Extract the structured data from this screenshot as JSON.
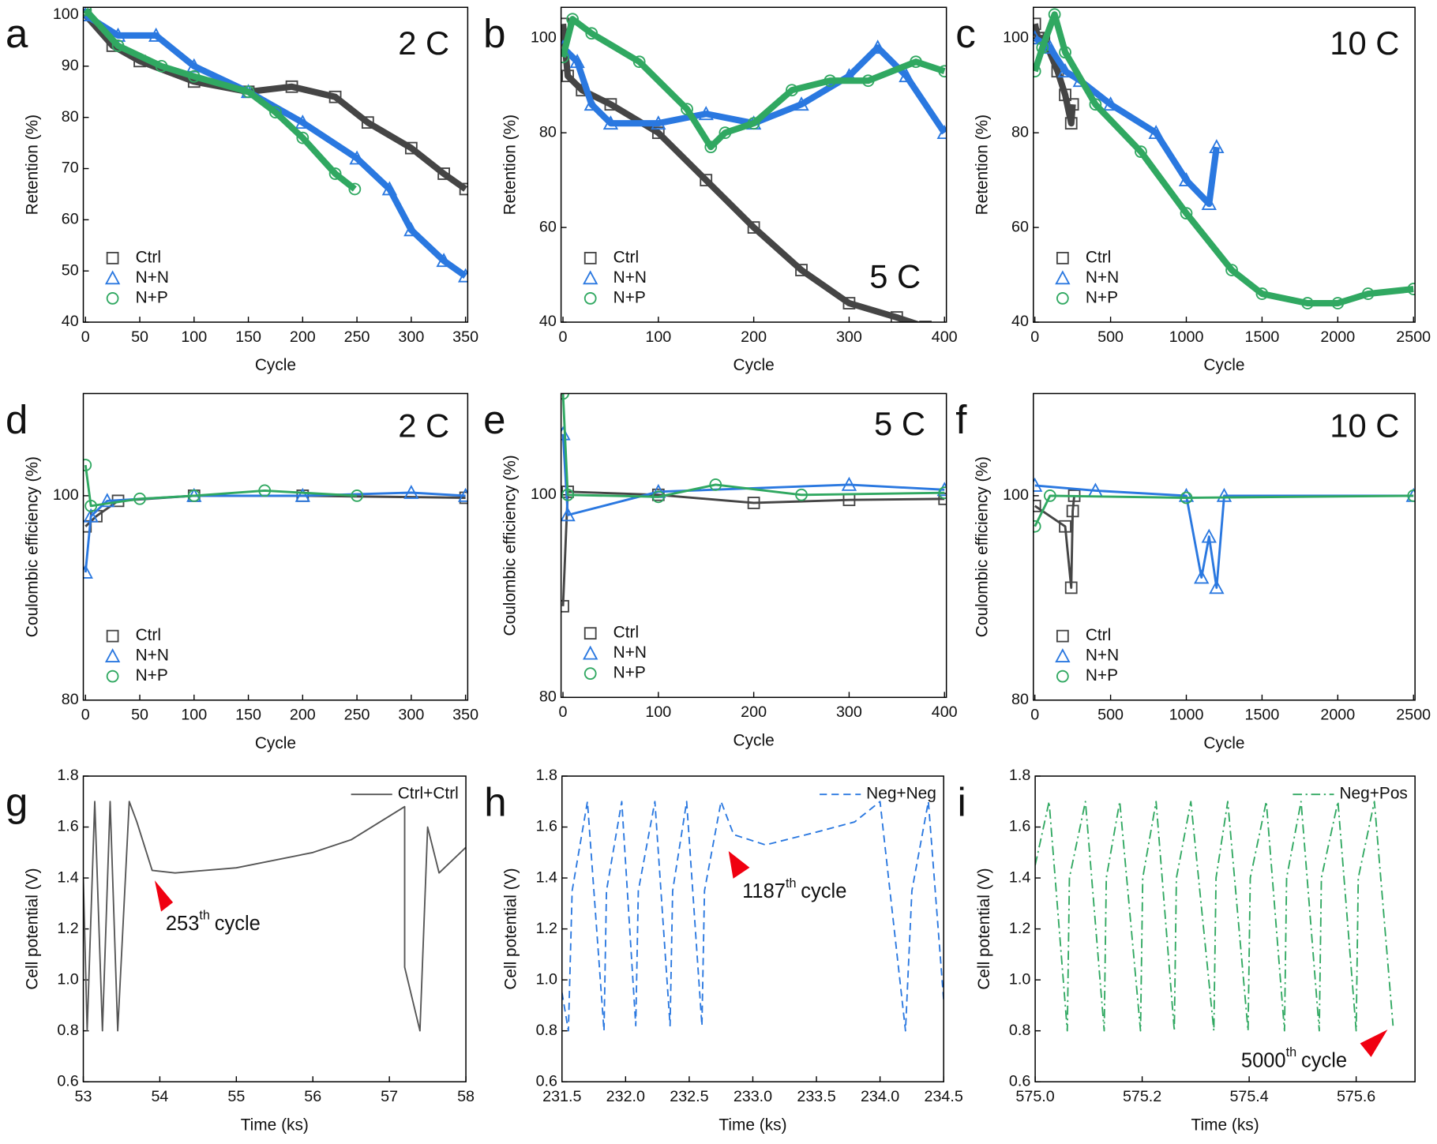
{
  "chart_data": [
    {
      "type": "line",
      "panel": "a",
      "label_text": "2 C",
      "xlabel": "Cycle",
      "ylabel": "Retention (%)",
      "xlim": [
        -2,
        352
      ],
      "ylim": [
        40,
        101.5
      ],
      "xticks": [
        0,
        50,
        100,
        150,
        200,
        250,
        300,
        350
      ],
      "yticks": [
        40,
        50,
        60,
        70,
        80,
        90,
        100
      ],
      "legend": "lower left",
      "series": [
        {
          "name": "Ctrl",
          "color": "#454545",
          "marker": "square",
          "x": [
            0,
            25,
            50,
            100,
            150,
            190,
            230,
            260,
            300,
            330,
            350
          ],
          "values": [
            100,
            94,
            91,
            87,
            85,
            86,
            84,
            79,
            74,
            69,
            66
          ]
        },
        {
          "name": "N+N",
          "color": "#2a78e0",
          "marker": "triangle",
          "x": [
            0,
            30,
            65,
            100,
            150,
            200,
            250,
            280,
            300,
            330,
            350
          ],
          "values": [
            100,
            96,
            96,
            90,
            85,
            79,
            72,
            66,
            58,
            52,
            49
          ]
        },
        {
          "name": "N+P",
          "color": "#30a861",
          "marker": "circle",
          "x": [
            0,
            30,
            70,
            100,
            150,
            175,
            200,
            230,
            248
          ],
          "values": [
            101,
            94,
            90,
            88,
            85,
            81,
            76,
            69,
            66
          ]
        }
      ]
    },
    {
      "type": "line",
      "panel": "b",
      "label_text": "5 C",
      "xlabel": "Cycle",
      "ylabel": "Retention (%)",
      "xlim": [
        -2,
        402
      ],
      "ylim": [
        40,
        106.5
      ],
      "xticks": [
        0,
        100,
        200,
        300,
        400
      ],
      "yticks": [
        40,
        60,
        80,
        100
      ],
      "legend": "lower left",
      "series": [
        {
          "name": "Ctrl",
          "color": "#454545",
          "marker": "square",
          "x": [
            0,
            5,
            20,
            50,
            100,
            150,
            200,
            250,
            300,
            350,
            380
          ],
          "values": [
            103,
            92,
            89,
            86,
            80,
            70,
            60,
            51,
            44,
            41,
            39
          ]
        },
        {
          "name": "N+N",
          "color": "#2a78e0",
          "marker": "triangle",
          "x": [
            0,
            15,
            30,
            50,
            100,
            150,
            200,
            250,
            300,
            330,
            360,
            400
          ],
          "values": [
            98,
            95,
            86,
            82,
            82,
            84,
            82,
            86,
            92,
            98,
            92,
            80
          ]
        },
        {
          "name": "N+P",
          "color": "#30a861",
          "marker": "circle",
          "x": [
            0,
            10,
            30,
            80,
            130,
            155,
            170,
            200,
            240,
            280,
            320,
            370,
            400
          ],
          "values": [
            96,
            104,
            101,
            95,
            85,
            77,
            80,
            82,
            89,
            91,
            91,
            95,
            93
          ]
        }
      ]
    },
    {
      "type": "line",
      "panel": "c",
      "label_text": "10 C",
      "xlabel": "Cycle",
      "ylabel": "Retention (%)",
      "xlim": [
        -10,
        2510
      ],
      "ylim": [
        40,
        106.5
      ],
      "xticks": [
        0,
        500,
        1000,
        1500,
        2000,
        2500
      ],
      "yticks": [
        40,
        60,
        80,
        100
      ],
      "legend": "lower left",
      "series": [
        {
          "name": "Ctrl",
          "color": "#454545",
          "marker": "square",
          "x": [
            0,
            20,
            60,
            150,
            200,
            240,
            250
          ],
          "values": [
            103,
            100,
            100,
            93,
            88,
            82,
            86
          ]
        },
        {
          "name": "N+N",
          "color": "#2a78e0",
          "marker": "triangle",
          "x": [
            0,
            100,
            200,
            300,
            500,
            800,
            1000,
            1150,
            1200
          ],
          "values": [
            100,
            98,
            93,
            91,
            86,
            80,
            70,
            65,
            77
          ]
        },
        {
          "name": "N+P",
          "color": "#30a861",
          "marker": "circle",
          "x": [
            0,
            50,
            130,
            200,
            400,
            700,
            1000,
            1300,
            1500,
            1800,
            2000,
            2200,
            2500
          ],
          "values": [
            93,
            98,
            105,
            97,
            86,
            76,
            63,
            51,
            46,
            44,
            44,
            46,
            47
          ]
        }
      ]
    },
    {
      "type": "line",
      "panel": "d",
      "label_text": "2 C",
      "xlabel": "Cycle",
      "ylabel": "Coulombic efficiency (%)",
      "xlim": [
        -2,
        352
      ],
      "ylim": [
        80,
        110
      ],
      "xticks": [
        0,
        50,
        100,
        150,
        200,
        250,
        300,
        350
      ],
      "yticks": [
        80,
        100
      ],
      "legend": "lower left",
      "series": [
        {
          "name": "Ctrl",
          "color": "#454545",
          "marker": "square",
          "x": [
            0,
            10,
            30,
            100,
            200,
            350
          ],
          "values": [
            97,
            98,
            99.5,
            100,
            100,
            99.8
          ]
        },
        {
          "name": "N+N",
          "color": "#2a78e0",
          "marker": "triangle",
          "x": [
            0,
            5,
            20,
            100,
            200,
            300,
            350
          ],
          "values": [
            92.5,
            98,
            99.5,
            100,
            100,
            100.3,
            100
          ]
        },
        {
          "name": "N+P",
          "color": "#30a861",
          "marker": "circle",
          "x": [
            0,
            5,
            50,
            100,
            165,
            250
          ],
          "values": [
            103,
            99,
            99.7,
            100,
            100.5,
            100
          ]
        }
      ]
    },
    {
      "type": "line",
      "panel": "e",
      "label_text": "5 C",
      "xlabel": "Cycle",
      "ylabel": "Coulombic efficiency (%)",
      "xlim": [
        -2,
        402
      ],
      "ylim": [
        80,
        110
      ],
      "xticks": [
        0,
        100,
        200,
        300,
        400
      ],
      "yticks": [
        80,
        100
      ],
      "legend": "lower left",
      "series": [
        {
          "name": "Ctrl",
          "color": "#454545",
          "marker": "square",
          "x": [
            0,
            5,
            100,
            200,
            300,
            400
          ],
          "values": [
            89,
            100.3,
            100,
            99.2,
            99.5,
            99.6
          ]
        },
        {
          "name": "N+N",
          "color": "#2a78e0",
          "marker": "triangle",
          "x": [
            0,
            5,
            100,
            300,
            400
          ],
          "values": [
            106,
            98,
            100.3,
            101,
            100.5
          ]
        },
        {
          "name": "N+P",
          "color": "#30a861",
          "marker": "circle",
          "x": [
            0,
            5,
            100,
            160,
            250,
            400
          ],
          "values": [
            110,
            100,
            99.8,
            101,
            100,
            100.2
          ]
        }
      ]
    },
    {
      "type": "line",
      "panel": "f",
      "label_text": "10 C",
      "xlabel": "Cycle",
      "ylabel": "Coulombic efficiency (%)",
      "xlim": [
        -10,
        2510
      ],
      "ylim": [
        80,
        110
      ],
      "xticks": [
        0,
        500,
        1000,
        1500,
        2000,
        2500
      ],
      "yticks": [
        80,
        100
      ],
      "legend": "lower left",
      "series": [
        {
          "name": "Ctrl",
          "color": "#454545",
          "marker": "square",
          "x": [
            0,
            200,
            240,
            250,
            260
          ],
          "values": [
            99,
            97,
            91,
            98.5,
            100
          ]
        },
        {
          "name": "N+N",
          "color": "#2a78e0",
          "marker": "triangle",
          "x": [
            0,
            400,
            1000,
            1100,
            1150,
            1200,
            1250,
            2500
          ],
          "values": [
            101,
            100.5,
            100,
            92,
            96,
            91,
            100,
            100
          ]
        },
        {
          "name": "N+P",
          "color": "#30a861",
          "marker": "circle",
          "x": [
            0,
            100,
            1000,
            2500
          ],
          "values": [
            97,
            100,
            99.8,
            100
          ]
        }
      ]
    },
    {
      "type": "line",
      "panel": "g",
      "xlabel": "Time (ks)",
      "ylabel": "Cell potential (V)",
      "annotation": {
        "text": "253",
        "superscript": "th",
        "suffix": "cycle"
      },
      "xlim": [
        53,
        58
      ],
      "ylim": [
        0.6,
        1.8
      ],
      "xticks": [
        53,
        54,
        55,
        56,
        57,
        58
      ],
      "yticks": [
        0.6,
        0.8,
        {
          "value": 1,
          "label": "1.0"
        },
        1.2,
        1.4,
        1.6,
        1.8
      ],
      "legend": "upper right",
      "series": [
        {
          "name": "Ctrl+Ctrl",
          "color": "#555555",
          "linestyle": "solid",
          "x": [
            53,
            53.05,
            53.15,
            53.25,
            53.35,
            53.45,
            53.6,
            53.7,
            53.9,
            54.2,
            55,
            56,
            56.5,
            57.2,
            57.2,
            57.4,
            57.5,
            57.65,
            58
          ],
          "values": [
            1.4,
            0.8,
            1.7,
            0.8,
            1.7,
            0.8,
            1.7,
            1.62,
            1.43,
            1.42,
            1.44,
            1.5,
            1.55,
            1.68,
            1.05,
            0.8,
            1.6,
            1.42,
            1.52
          ]
        }
      ]
    },
    {
      "type": "line",
      "panel": "h",
      "xlabel": "Time (ks)",
      "ylabel": "Cell potential (V)",
      "annotation": {
        "text": "1187",
        "superscript": "th",
        "suffix": "cycle"
      },
      "xlim": [
        231.5,
        234.5
      ],
      "ylim": [
        0.6,
        1.8
      ],
      "xticks": [
        231.5,
        {
          "value": 232,
          "label": "232.0"
        },
        232.5,
        {
          "value": 233,
          "label": "233.0"
        },
        233.5,
        {
          "value": 234,
          "label": "234.0"
        },
        234.5
      ],
      "yticks": [
        0.6,
        0.8,
        {
          "value": 1,
          "label": "1.0"
        },
        1.2,
        1.4,
        1.6,
        1.8
      ],
      "legend": "upper right",
      "series": [
        {
          "name": "Neg+Neg",
          "color": "#2a78e0",
          "linestyle": "dashed",
          "x": [
            231.5,
            231.55,
            231.58,
            231.7,
            231.83,
            231.85,
            231.97,
            232.08,
            232.1,
            232.23,
            232.35,
            232.37,
            232.48,
            232.6,
            232.62,
            232.75,
            232.85,
            233.1,
            233.5,
            233.8,
            234,
            234.2,
            234.25,
            234.38,
            234.5
          ],
          "values": [
            0.95,
            0.8,
            1.35,
            1.7,
            0.8,
            1.35,
            1.7,
            0.82,
            1.35,
            1.7,
            0.82,
            1.35,
            1.7,
            0.82,
            1.35,
            1.7,
            1.57,
            1.53,
            1.58,
            1.62,
            1.7,
            0.8,
            1.35,
            1.7,
            0.92
          ]
        }
      ]
    },
    {
      "type": "line",
      "panel": "i",
      "xlabel": "Time (ks)",
      "ylabel": "Cell potential (V)",
      "annotation": {
        "text": "5000",
        "superscript": "th",
        "suffix": "cycle"
      },
      "xlim": [
        575,
        575.71
      ],
      "ylim": [
        0.6,
        1.8
      ],
      "xticks": [
        {
          "value": 575,
          "label": "575.0"
        },
        575.2,
        575.4,
        575.6
      ],
      "yticks": [
        0.6,
        0.8,
        {
          "value": 1,
          "label": "1.0"
        },
        1.2,
        1.4,
        1.6,
        1.8
      ],
      "legend": "upper right",
      "series": [
        {
          "name": "Neg+Pos",
          "color": "#30a861",
          "linestyle": "dashdot",
          "x": [
            575,
            575.026,
            575.06,
            575.064,
            575.094,
            575.129,
            575.133,
            575.158,
            575.197,
            575.201,
            575.226,
            575.26,
            575.264,
            575.291,
            575.334,
            575.338,
            575.36,
            575.398,
            575.402,
            575.432,
            575.466,
            575.47,
            575.497,
            575.531,
            575.535,
            575.566,
            575.6,
            575.604,
            575.634,
            575.669
          ],
          "values": [
            1.45,
            1.7,
            0.8,
            1.4,
            1.7,
            0.8,
            1.4,
            1.7,
            0.8,
            1.4,
            1.7,
            0.8,
            1.4,
            1.7,
            0.8,
            1.4,
            1.7,
            0.8,
            1.4,
            1.7,
            0.8,
            1.4,
            1.7,
            0.8,
            1.4,
            1.7,
            0.8,
            1.4,
            1.7,
            0.82
          ]
        }
      ]
    }
  ]
}
